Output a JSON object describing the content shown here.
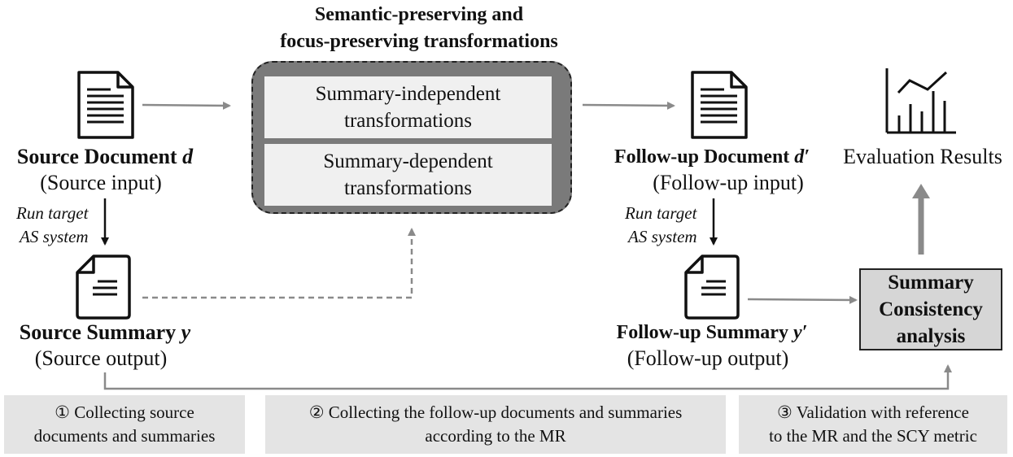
{
  "title": {
    "line1": "Semantic-preserving and",
    "line2": "focus-preserving transformations"
  },
  "transformations": [
    {
      "label": "Summary-independent\ntransformations"
    },
    {
      "label": "Summary-dependent\ntransformations"
    }
  ],
  "source_document": {
    "name_prefix": "Source Document ",
    "symbol": "d",
    "caption": "(Source input)"
  },
  "source_summary": {
    "name_prefix": "Source Summary ",
    "symbol": "y",
    "caption": "(Source output)"
  },
  "followup_document": {
    "name_prefix": "Follow-up Document ",
    "symbol": "d′",
    "caption": "(Follow-up input)"
  },
  "followup_summary": {
    "name_prefix": "Follow-up Summary ",
    "symbol": "y′",
    "caption": "(Follow-up output)"
  },
  "run_label": {
    "line1": "Run target",
    "line2": "AS system"
  },
  "evaluation": {
    "label": "Evaluation Results"
  },
  "consistency": {
    "label": "Summary\nConsistency\nanalysis"
  },
  "steps": [
    {
      "text": "① Collecting source\ndocuments and summaries"
    },
    {
      "text": "② Collecting the follow-up documents and summaries\naccording to the MR"
    },
    {
      "text": "③ Validation with reference\nto the MR and the SCY metric"
    }
  ],
  "colors": {
    "arrow_gray": "#8a8a8a",
    "box_dark": "#7a7a7a",
    "box_light": "#f0f0f0",
    "step_bg": "#e4e4e4",
    "analysis_bg": "#d6d6d6"
  },
  "icons": [
    "document-lines-icon",
    "document-short-icon",
    "line-chart-icon"
  ]
}
